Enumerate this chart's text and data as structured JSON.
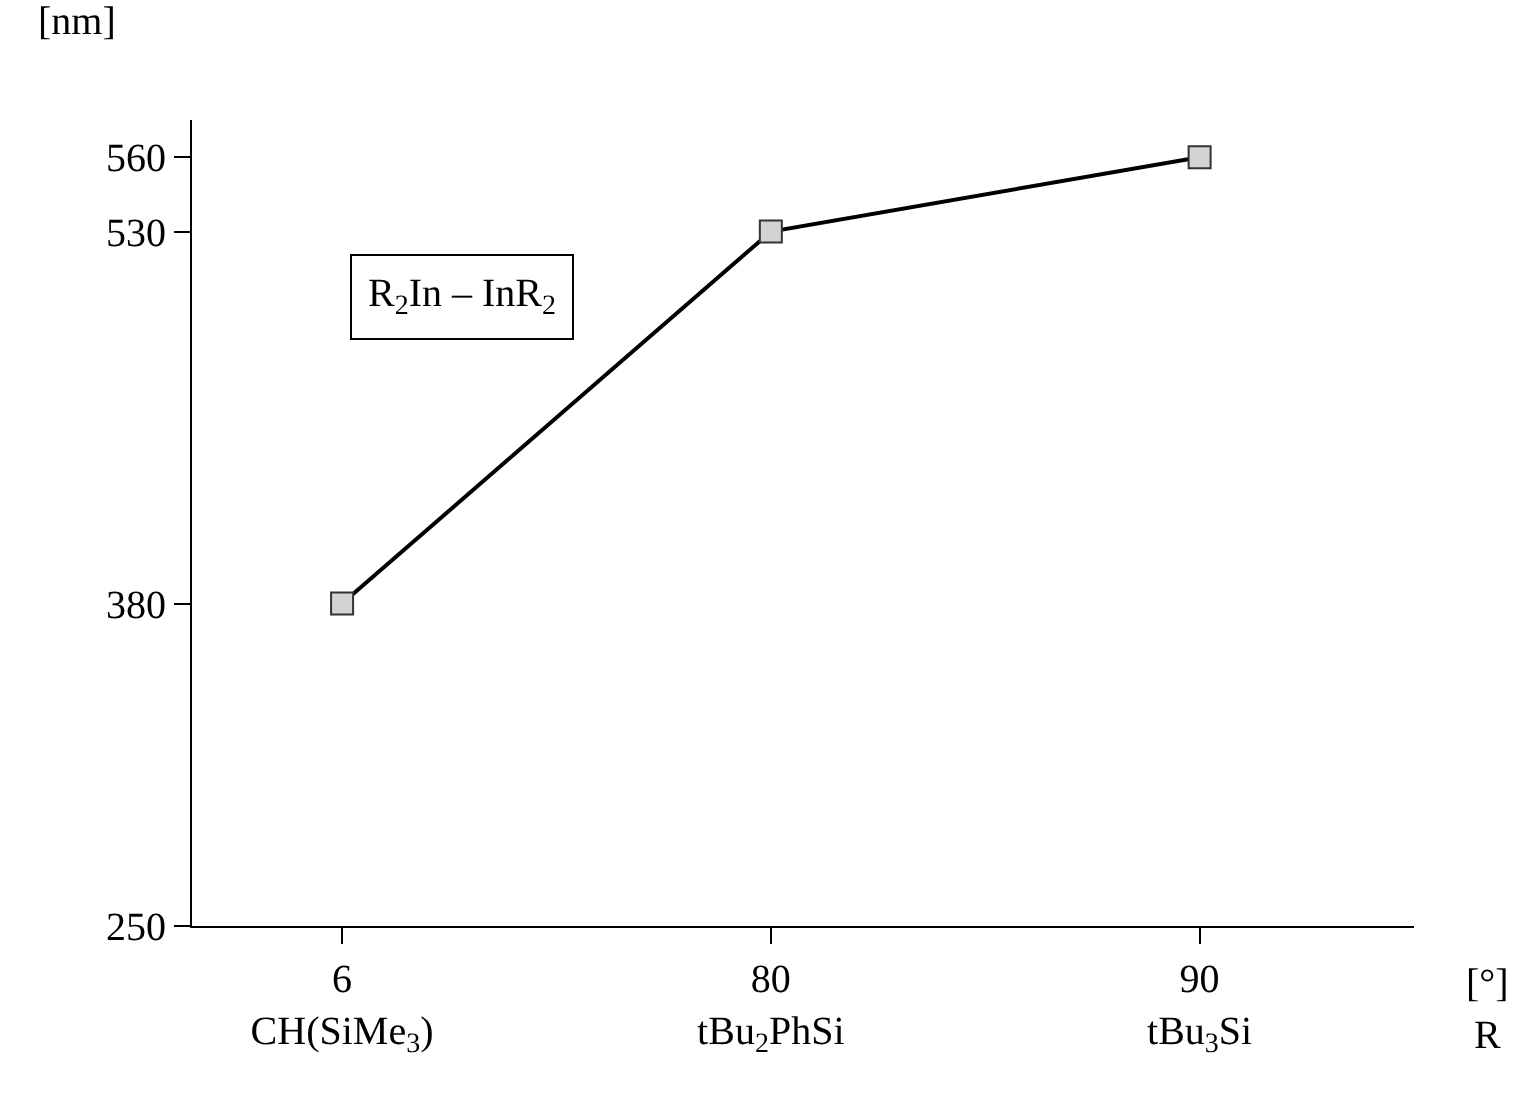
{
  "chart_data": {
    "type": "line",
    "categories": [
      "6\nCH(SiMe$_{3}$)",
      "80\ntBu$_{2}$PhSi",
      "90\ntBu$_{3}$Si"
    ],
    "series": [
      {
        "color": "#000000",
        "values": [
          380,
          530,
          560
        ]
      }
    ],
    "ylim": [
      250,
      575
    ],
    "yticks": [
      250,
      380,
      530,
      560
    ],
    "xlabel": "[°]\nR",
    "ylabel": "[nm]",
    "annotations": [
      "R$_{2}$In – InR$_{2}$"
    ],
    "marker": "square",
    "line_style": "solid",
    "grid": false
  }
}
